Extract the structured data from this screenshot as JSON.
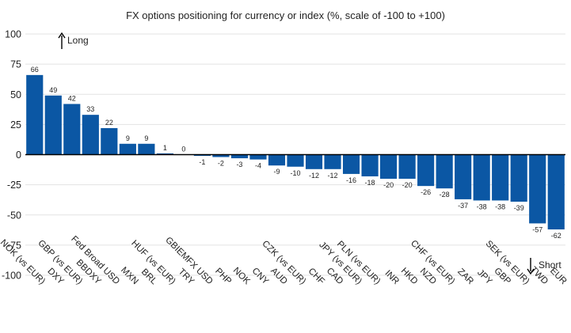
{
  "chart_data": {
    "type": "bar",
    "title": "FX options positioning for currency or index (%, scale of -100 to +100)",
    "xlabel": "",
    "ylabel": "",
    "ylim": [
      -100,
      100
    ],
    "yticks": [
      100,
      75,
      50,
      25,
      0,
      -25,
      -50,
      -75,
      -100
    ],
    "grid": true,
    "bar_color": "#0b57a4",
    "categories": [
      "NOK (vs EUR)",
      "DXY",
      "GBP (vs EUR)",
      "BBDXY",
      "Fed Broad USD",
      "MXN",
      "BRL",
      "HUF (vs EUR)",
      "TRY",
      "GBIEMFX USD",
      "PHP",
      "NOK",
      "CNY",
      "AUD",
      "CZK (vs EUR)",
      "CHF",
      "CAD",
      "JPY (vs EUR)",
      "PLN (vs EUR)",
      "INR",
      "HKD",
      "NZD",
      "CHF (vs EUR)",
      "ZAR",
      "JPY",
      "GBP",
      "SEK (vs EUR)",
      "TWD",
      "EUR"
    ],
    "values": [
      66,
      49,
      42,
      33,
      22,
      9,
      9,
      1,
      0,
      -1,
      -2,
      -3,
      -4,
      -9,
      -10,
      -12,
      -12,
      -16,
      -18,
      -20,
      -20,
      -26,
      -28,
      -37,
      -38,
      -38,
      -39,
      -57,
      -62
    ],
    "annotations": [
      {
        "text": "Long",
        "direction": "up"
      },
      {
        "text": "Short",
        "direction": "down"
      }
    ]
  }
}
